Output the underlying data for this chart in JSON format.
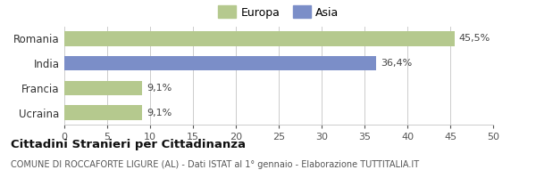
{
  "categories": [
    "Romania",
    "India",
    "Francia",
    "Ucraina"
  ],
  "values": [
    45.5,
    36.4,
    9.1,
    9.1
  ],
  "bar_colors": [
    "#b5c98e",
    "#7b8ec8",
    "#b5c98e",
    "#b5c98e"
  ],
  "labels": [
    "45,5%",
    "36,4%",
    "9,1%",
    "9,1%"
  ],
  "xlim": [
    0,
    50
  ],
  "xticks": [
    0,
    5,
    10,
    15,
    20,
    25,
    30,
    35,
    40,
    45,
    50
  ],
  "legend_europa_color": "#b5c98e",
  "legend_asia_color": "#7b8ec8",
  "title": "Cittadini Stranieri per Cittadinanza",
  "subtitle": "COMUNE DI ROCCAFORTE LIGURE (AL) - Dati ISTAT al 1° gennaio - Elaborazione TUTTITALIA.IT",
  "background_color": "#ffffff",
  "grid_color": "#cccccc"
}
